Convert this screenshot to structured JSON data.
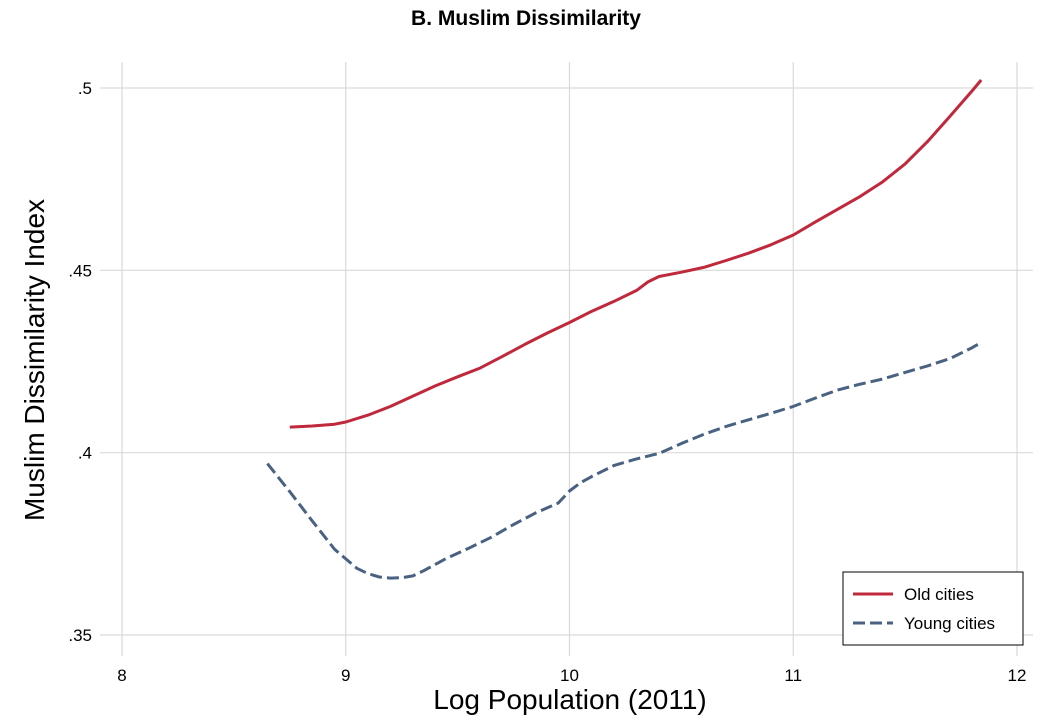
{
  "chart_data": {
    "type": "line",
    "title": "B. Muslim Dissimilarity",
    "xlabel": "Log Population (2011)",
    "ylabel": "Muslim Dissimilarity Index",
    "xlim": [
      8,
      12
    ],
    "ylim": [
      0.35,
      0.5
    ],
    "x_ticks": [
      8,
      9,
      10,
      11,
      12
    ],
    "x_tick_labels": [
      "8",
      "9",
      "10",
      "11",
      "12"
    ],
    "y_ticks": [
      0.35,
      0.4,
      0.45,
      0.5
    ],
    "y_tick_labels": [
      ".35",
      ".4",
      ".45",
      ".5"
    ],
    "grid": true,
    "legend_position": "bottom-right",
    "series": [
      {
        "name": "Old cities",
        "color": "#c0283c",
        "style": "solid",
        "x": [
          8.75,
          8.85,
          8.95,
          9.0,
          9.1,
          9.2,
          9.3,
          9.4,
          9.5,
          9.6,
          9.7,
          9.8,
          9.9,
          10.0,
          10.1,
          10.2,
          10.3,
          10.35,
          10.4,
          10.5,
          10.6,
          10.7,
          10.8,
          10.9,
          11.0,
          11.1,
          11.2,
          11.3,
          11.4,
          11.5,
          11.6,
          11.7,
          11.8,
          11.84
        ],
        "y": [
          0.407,
          0.4073,
          0.4078,
          0.4084,
          0.4103,
          0.4127,
          0.4155,
          0.4183,
          0.4208,
          0.4232,
          0.4264,
          0.4297,
          0.4328,
          0.4357,
          0.4388,
          0.4415,
          0.4445,
          0.4468,
          0.4483,
          0.4495,
          0.4508,
          0.4527,
          0.4547,
          0.457,
          0.4597,
          0.4633,
          0.4668,
          0.4703,
          0.4743,
          0.4792,
          0.4853,
          0.4922,
          0.4993,
          0.5022
        ]
      },
      {
        "name": "Young cities",
        "color": "#4a6282",
        "style": "dashed",
        "x": [
          8.65,
          8.75,
          8.85,
          8.95,
          9.05,
          9.1,
          9.15,
          9.2,
          9.25,
          9.3,
          9.35,
          9.45,
          9.55,
          9.65,
          9.75,
          9.85,
          9.95,
          10.0,
          10.05,
          10.1,
          10.2,
          10.3,
          10.4,
          10.5,
          10.6,
          10.7,
          10.8,
          10.9,
          11.0,
          11.1,
          11.2,
          11.3,
          11.4,
          11.5,
          11.6,
          11.7,
          11.8,
          11.84
        ],
        "y": [
          0.397,
          0.3893,
          0.3813,
          0.3735,
          0.3683,
          0.3668,
          0.3659,
          0.3656,
          0.3657,
          0.3662,
          0.3677,
          0.371,
          0.3738,
          0.3768,
          0.3803,
          0.3835,
          0.3862,
          0.3895,
          0.3918,
          0.3935,
          0.3965,
          0.3983,
          0.3998,
          0.4025,
          0.405,
          0.4072,
          0.409,
          0.4108,
          0.4127,
          0.415,
          0.4172,
          0.4188,
          0.4202,
          0.422,
          0.4238,
          0.4258,
          0.4288,
          0.4302
        ]
      }
    ]
  }
}
